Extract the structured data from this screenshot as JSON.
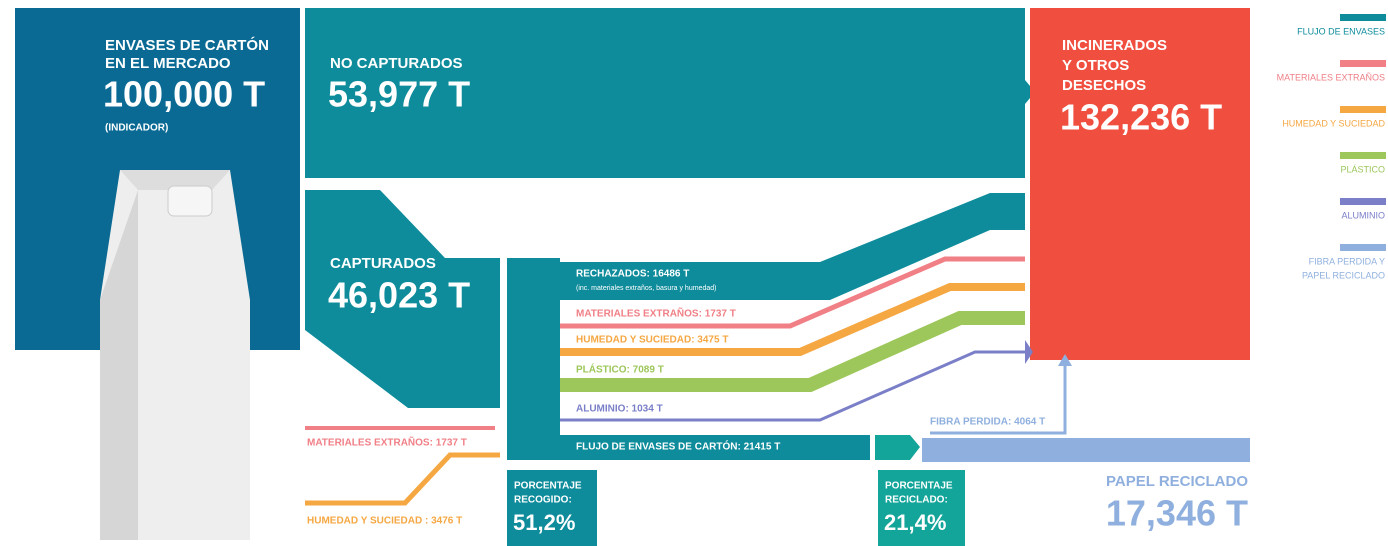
{
  "market": {
    "title": [
      "ENVASES DE CARTÓN",
      "EN EL MERCADO"
    ],
    "value": "100,000 T",
    "note": "(INDICADOR)"
  },
  "not_captured": {
    "title": "NO CAPTURADOS",
    "value": "53,977 T"
  },
  "captured": {
    "title": "CAPTURADOS",
    "value": "46,023 T"
  },
  "incinerated": {
    "title": [
      "INCINERADOS",
      "Y OTROS",
      "DESECHOS"
    ],
    "value": "132,236 T"
  },
  "rejected": {
    "title": "RECHAZADOS: 16486 T",
    "note": "(inc. materiales extraños, basura  y humedad)"
  },
  "flows": [
    "MATERIALES EXTRAÑOS: 1737 T",
    "HUMEDAD Y SUCIEDAD: 3475 T",
    "PLÁSTICO: 7089 T",
    "ALUMINIO: 1034 T"
  ],
  "inputs": [
    "MATERIALES EXTRAÑOS: 1737 T",
    "HUMEDAD Y SUCIEDAD : 3476 T"
  ],
  "carton_flow": "FLUJO DE ENVASES DE CARTÓN: 21415 T",
  "lost_fiber": "FIBRA PERDIDA: 4064 T",
  "recycled_paper": {
    "title": "PAPEL RECICLADO",
    "value": "17,346 T"
  },
  "collected": {
    "title": [
      "PORCENTAJE",
      "RECOGIDO:"
    ],
    "value": "51,2%"
  },
  "recycled": {
    "title": [
      "PORCENTAJE",
      "RECICLADO:"
    ],
    "value": "21,4%"
  },
  "legend": [
    {
      "label": [
        "FLUJO DE ENVASES"
      ],
      "color": "#0e8c9b"
    },
    {
      "label": [
        "MATERIALES EXTRAÑOS"
      ],
      "color": "#f07f86"
    },
    {
      "label": [
        "HUMEDAD  Y SUCIEDAD"
      ],
      "color": "#f5a742"
    },
    {
      "label": [
        "PLÁSTICO"
      ],
      "color": "#9dc75a"
    },
    {
      "label": [
        "ALUMINIO"
      ],
      "color": "#7a7fc8"
    },
    {
      "label": [
        "FIBRA PERDIDA Y",
        "PAPEL RECICLADO"
      ],
      "color": "#8fb0de"
    }
  ]
}
